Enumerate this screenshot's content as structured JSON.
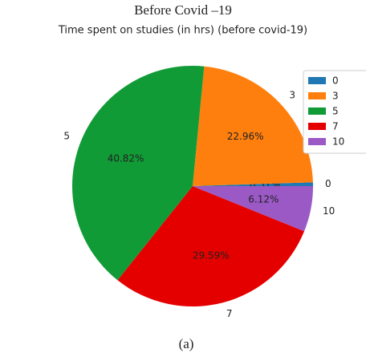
{
  "figure_title": "Before Covid –19",
  "caption": "(a)",
  "chart_data": {
    "type": "pie",
    "title": "Time spent on studies (in hrs) (before covid-19)",
    "categories": [
      "0",
      "3",
      "5",
      "7",
      "10"
    ],
    "values": [
      0.51,
      22.96,
      40.82,
      29.59,
      6.12
    ],
    "value_labels": [
      "0.51%",
      "22.96%",
      "40.82%",
      "29.59%",
      "6.12%"
    ],
    "colors": [
      "#1f77b4",
      "#ff7f0e",
      "#119b36",
      "#e50000",
      "#9b59c6"
    ],
    "legend": "upper right"
  }
}
